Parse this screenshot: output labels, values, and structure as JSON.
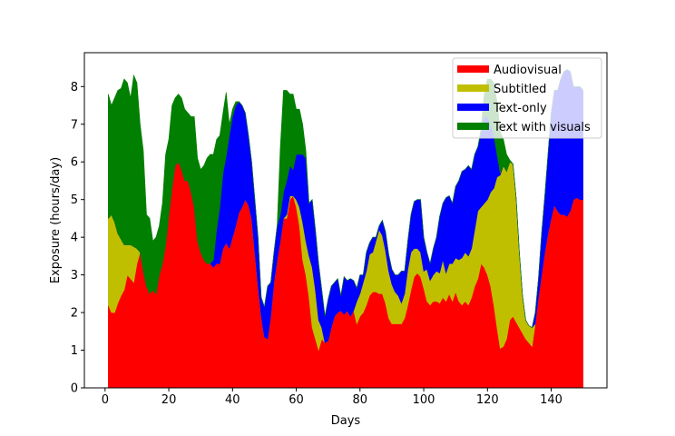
{
  "chart_data": {
    "type": "area",
    "stacked": true,
    "title": "",
    "xlabel": "Days",
    "ylabel": "Exposure (hours/day)",
    "xlim": [
      -6.5,
      157.5
    ],
    "ylim": [
      0,
      8.9
    ],
    "xticks": [
      0,
      20,
      40,
      60,
      80,
      100,
      120,
      140
    ],
    "yticks": [
      0,
      1,
      2,
      3,
      4,
      5,
      6,
      7,
      8
    ],
    "grid": false,
    "legend_position": "top-right",
    "x": [
      1,
      2,
      3,
      4,
      5,
      6,
      7,
      8,
      9,
      10,
      11,
      12,
      13,
      14,
      15,
      16,
      17,
      18,
      19,
      20,
      21,
      22,
      23,
      24,
      25,
      26,
      27,
      28,
      29,
      30,
      31,
      32,
      33,
      34,
      35,
      36,
      37,
      38,
      39,
      40,
      41,
      42,
      43,
      44,
      45,
      46,
      47,
      48,
      49,
      50,
      51,
      52,
      53,
      54,
      55,
      56,
      57,
      58,
      59,
      60,
      61,
      62,
      63,
      64,
      65,
      66,
      67,
      68,
      69,
      70,
      71,
      72,
      73,
      74,
      75,
      76,
      77,
      78,
      79,
      80,
      81,
      82,
      83,
      84,
      85,
      86,
      87,
      88,
      89,
      90,
      91,
      92,
      93,
      94,
      95,
      96,
      97,
      98,
      99,
      100,
      101,
      102,
      103,
      104,
      105,
      106,
      107,
      108,
      109,
      110,
      111,
      112,
      113,
      114,
      115,
      116,
      117,
      118,
      119,
      120,
      121,
      122,
      123,
      124,
      125,
      126,
      127,
      128,
      129,
      130,
      131,
      132,
      133,
      134,
      135,
      136,
      137,
      138,
      139,
      140,
      141,
      142,
      143,
      144,
      145,
      146,
      147,
      148,
      149,
      150
    ],
    "series": [
      {
        "name": "Audiovisual",
        "color": "#ff0000",
        "values": [
          2.2,
          2.0,
          2.0,
          2.25,
          2.45,
          2.6,
          3.0,
          2.9,
          2.8,
          3.3,
          3.6,
          3.1,
          2.7,
          2.5,
          2.6,
          2.5,
          3.0,
          3.3,
          3.8,
          4.6,
          5.3,
          5.9,
          6.0,
          5.8,
          5.5,
          5.5,
          5.2,
          4.8,
          3.9,
          3.6,
          3.4,
          3.3,
          3.3,
          3.2,
          3.3,
          3.3,
          3.7,
          3.85,
          3.7,
          4.0,
          4.3,
          4.65,
          4.8,
          5.0,
          4.85,
          4.5,
          3.6,
          2.7,
          1.9,
          1.35,
          1.3,
          1.9,
          2.8,
          3.4,
          3.9,
          4.5,
          4.5,
          5.0,
          5.1,
          4.8,
          4.3,
          3.4,
          3.0,
          2.4,
          1.6,
          1.3,
          1.0,
          1.3,
          1.2,
          1.25,
          1.6,
          1.9,
          2.0,
          2.05,
          1.95,
          2.05,
          1.9,
          2.05,
          1.7,
          1.9,
          2.0,
          2.2,
          2.45,
          2.55,
          2.55,
          2.5,
          2.5,
          2.25,
          1.85,
          1.7,
          1.7,
          1.7,
          1.7,
          1.85,
          2.2,
          2.6,
          2.95,
          3.05,
          2.95,
          2.65,
          2.3,
          2.2,
          2.3,
          2.3,
          2.25,
          2.4,
          2.3,
          2.5,
          2.3,
          2.55,
          2.3,
          2.2,
          2.3,
          2.2,
          2.4,
          2.7,
          2.9,
          3.3,
          3.2,
          3.0,
          2.7,
          2.2,
          1.6,
          1.05,
          1.1,
          1.3,
          1.8,
          1.9,
          1.75,
          1.6,
          1.45,
          1.3,
          1.2,
          1.1,
          1.7,
          2.4,
          3.0,
          3.6,
          4.1,
          4.5,
          4.85,
          4.7,
          4.6,
          4.6,
          4.55,
          4.7,
          5.0,
          5.05,
          5.0,
          5.0
        ]
      },
      {
        "name": "Subtitled",
        "color": "#bfbf00",
        "values": [
          2.3,
          2.6,
          2.4,
          1.85,
          1.5,
          1.2,
          0.8,
          0.9,
          0.95,
          0.4,
          0.0,
          0.0,
          0.0,
          0.0,
          0.0,
          0.0,
          0.0,
          0.0,
          0.0,
          0.0,
          0.0,
          0.0,
          0.0,
          0.0,
          0.0,
          0.0,
          0.0,
          0.0,
          0.0,
          0.0,
          0.0,
          0.0,
          0.0,
          0.0,
          0.0,
          0.0,
          0.0,
          0.0,
          0.0,
          0.0,
          0.0,
          0.0,
          0.0,
          0.0,
          0.0,
          0.0,
          0.0,
          0.0,
          0.0,
          0.0,
          0.0,
          0.0,
          0.0,
          0.0,
          0.0,
          0.0,
          0.1,
          0.1,
          0.0,
          0.2,
          0.5,
          1.0,
          0.9,
          1.1,
          1.6,
          1.3,
          0.8,
          0.3,
          0.0,
          0.0,
          0.0,
          0.0,
          0.0,
          0.0,
          0.0,
          0.0,
          0.0,
          0.0,
          0.6,
          0.6,
          0.8,
          0.9,
          1.1,
          1.05,
          1.35,
          1.7,
          1.55,
          1.4,
          1.25,
          1.05,
          0.85,
          0.75,
          0.55,
          0.65,
          0.95,
          1.0,
          0.75,
          0.65,
          0.65,
          0.45,
          0.85,
          0.65,
          0.7,
          0.8,
          0.8,
          1.0,
          0.75,
          0.8,
          1.0,
          0.9,
          1.1,
          1.25,
          1.3,
          1.3,
          1.3,
          1.5,
          1.8,
          1.5,
          1.7,
          2.0,
          2.5,
          3.1,
          4.0,
          4.6,
          4.8,
          4.45,
          4.2,
          4.05,
          3.3,
          2.0,
          1.0,
          0.5,
          0.45,
          0.5,
          0.0,
          0.0,
          0.0,
          0.0,
          0.0,
          0.0,
          0.0,
          0.0,
          0.0,
          0.0,
          0.0,
          0.0,
          0.0,
          0.0,
          0.0,
          0.0
        ]
      },
      {
        "name": "Text-only",
        "color": "#0000ff",
        "values": [
          0.0,
          0.0,
          0.0,
          0.0,
          0.0,
          0.0,
          0.0,
          0.0,
          0.0,
          0.0,
          0.0,
          0.0,
          0.0,
          0.0,
          0.0,
          0.0,
          0.0,
          0.0,
          0.0,
          0.0,
          0.0,
          0.0,
          0.0,
          0.0,
          0.0,
          0.0,
          0.0,
          0.0,
          0.0,
          0.0,
          0.0,
          0.0,
          0.0,
          0.2,
          0.9,
          1.5,
          2.0,
          2.3,
          3.0,
          3.2,
          3.2,
          2.95,
          2.7,
          2.3,
          1.85,
          1.5,
          1.4,
          1.3,
          0.5,
          0.8,
          1.4,
          0.9,
          0.8,
          0.9,
          0.7,
          0.7,
          0.9,
          0.8,
          0.7,
          1.2,
          1.4,
          1.8,
          2.2,
          1.4,
          1.8,
          1.6,
          1.5,
          1.0,
          0.7,
          1.1,
          1.1,
          0.9,
          0.9,
          0.4,
          1.0,
          0.8,
          1.0,
          0.8,
          0.35,
          0.5,
          0.2,
          0.5,
          0.3,
          0.4,
          0.1,
          0.1,
          0.4,
          0.5,
          0.45,
          0.4,
          0.45,
          0.55,
          0.85,
          0.6,
          0.75,
          1.0,
          1.25,
          1.3,
          1.4,
          0.9,
          0.45,
          0.45,
          0.7,
          0.9,
          1.5,
          1.5,
          2.0,
          1.8,
          1.6,
          1.9,
          2.1,
          2.3,
          2.2,
          2.4,
          2.1,
          2.0,
          1.7,
          2.0,
          2.3,
          2.2,
          1.8,
          1.4,
          0.6,
          0.05,
          0.0,
          0.0,
          0.0,
          0.0,
          0.0,
          0.0,
          0.0,
          0.0,
          0.0,
          0.0,
          0.3,
          0.5,
          1.1,
          1.5,
          2.1,
          2.8,
          3.05,
          3.2,
          3.6,
          3.8,
          3.9,
          3.7,
          3.0,
          2.95,
          3.0,
          2.9
        ]
      },
      {
        "name": "Text with visuals",
        "color": "#007f00",
        "values": [
          3.3,
          2.9,
          3.3,
          3.8,
          4.0,
          4.4,
          4.3,
          3.9,
          4.55,
          4.4,
          3.4,
          3.2,
          1.9,
          2.0,
          1.3,
          1.5,
          1.3,
          1.6,
          2.4,
          2.0,
          2.2,
          1.8,
          1.8,
          1.9,
          1.9,
          1.8,
          2.0,
          2.4,
          2.2,
          2.2,
          2.5,
          2.8,
          2.9,
          2.8,
          2.4,
          1.9,
          1.6,
          1.7,
          0.3,
          0.2,
          0.1,
          0.0,
          0.0,
          0.0,
          0.0,
          0.0,
          0.0,
          0.0,
          0.0,
          0.0,
          0.0,
          0.0,
          0.0,
          0.0,
          1.8,
          2.7,
          2.4,
          1.9,
          2.0,
          1.2,
          1.2,
          0.8,
          0.2,
          0.0,
          0.0,
          0.0,
          0.0,
          0.0,
          0.0,
          0.0,
          0.0,
          0.0,
          0.0,
          0.0,
          0.0,
          0.0,
          0.0,
          0.0,
          0.0,
          0.0,
          0.0,
          0.0,
          0.0,
          0.0,
          0.0,
          0.0,
          0.0,
          0.0,
          0.0,
          0.0,
          0.0,
          0.0,
          0.0,
          0.0,
          0.0,
          0.0,
          0.0,
          0.0,
          0.0,
          0.0,
          0.0,
          0.0,
          0.0,
          0.0,
          0.0,
          0.0,
          0.0,
          0.0,
          0.0,
          0.0,
          0.0,
          0.0,
          0.0,
          0.0,
          0.0,
          0.0,
          0.0,
          0.1,
          0.6,
          1.0,
          1.2,
          1.4,
          1.4,
          1.1,
          0.7,
          0.45,
          0.05,
          0.0,
          0.0,
          0.0,
          0.0,
          0.0,
          0.0,
          0.0,
          0.0,
          0.0,
          0.0,
          0.0,
          0.0,
          0.0,
          0.0,
          0.0,
          0.0,
          0.0,
          0.0,
          0.0,
          0.0,
          0.0,
          0.0,
          0.0
        ]
      }
    ]
  }
}
